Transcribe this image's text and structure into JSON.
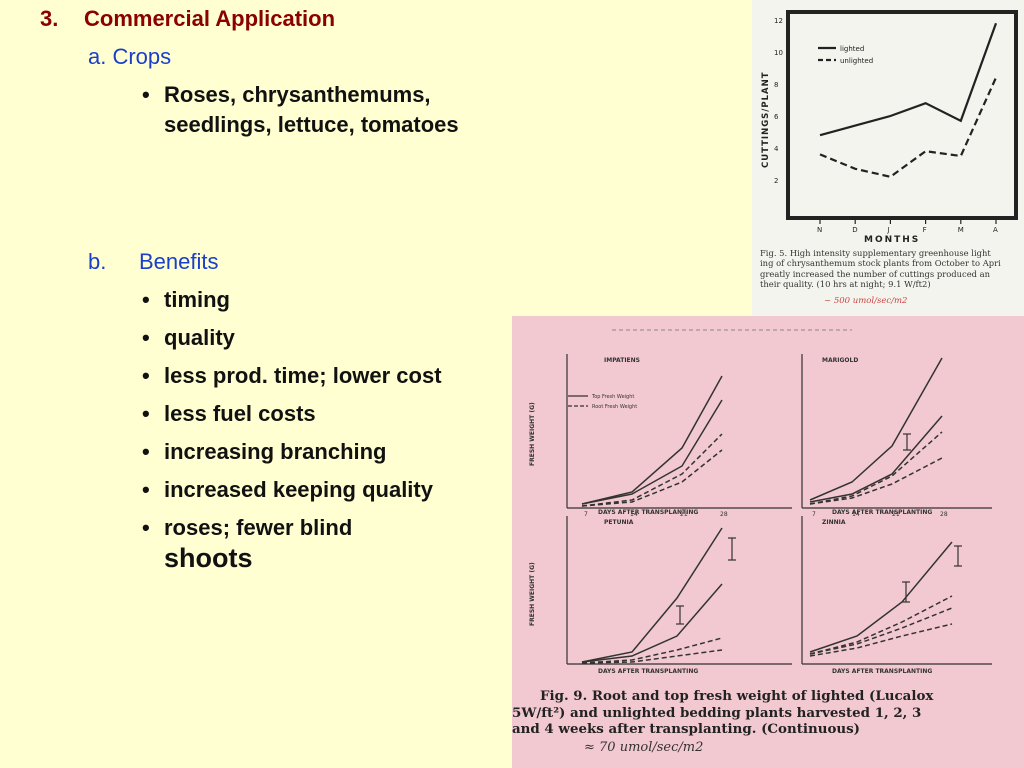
{
  "heading": {
    "number": "3.",
    "title": "Commercial Application"
  },
  "crops": {
    "label": "a.  Crops",
    "items": [
      "Roses, chrysanthemums, seedlings, lettuce, tomatoes"
    ]
  },
  "benefits": {
    "label_letter": "b.",
    "label": "Benefits",
    "items": [
      "timing",
      "quality",
      "less prod. time; lower cost",
      "less fuel costs",
      "increasing branching",
      "increased keeping quality"
    ],
    "last_item_start": "roses; fewer blind",
    "last_item_end": "shoots"
  },
  "fig5": {
    "legend": [
      "lighted",
      "unlighted"
    ],
    "ylabel": "CUTTINGS/PLANT",
    "xlabel": "MONTHS",
    "yticks": [
      "12",
      "10",
      "8",
      "6",
      "4",
      "2"
    ],
    "xticks": [
      "N",
      "D",
      "J",
      "F",
      "M",
      "A"
    ],
    "caption_lines": [
      "Fig. 5.  High intensity supplementary greenhouse light",
      "ing of chrysanthemum stock plants from October to Apri",
      "greatly increased the number of cuttings produced an",
      "their quality. (10 hrs at night; 9.1 W/ft2)"
    ],
    "handwritten_note": "~ 500 umol/sec/m2",
    "chart_data": {
      "type": "line",
      "categories": [
        "N",
        "D",
        "J",
        "F",
        "M",
        "A"
      ],
      "series": [
        {
          "name": "lighted",
          "values": [
            4.8,
            5.4,
            6.0,
            6.8,
            5.7,
            11.8
          ]
        },
        {
          "name": "unlighted",
          "values": [
            3.6,
            2.7,
            2.2,
            3.8,
            3.5,
            8.4
          ]
        }
      ],
      "xlabel": "MONTHS",
      "ylabel": "CUTTINGS/PLANT",
      "ylim": [
        0,
        12
      ]
    }
  },
  "fig9": {
    "panels": [
      {
        "title": "IMPATIENS"
      },
      {
        "title": "MARIGOLD"
      },
      {
        "title": "PETUNIA"
      },
      {
        "title": "ZINNIA"
      }
    ],
    "ylabel": "FRESH WEIGHT (G)",
    "xlabel": "DAYS AFTER TRANSPLANTING",
    "xticks": [
      "7",
      "14",
      "21",
      "28"
    ],
    "legend": [
      "Top Fresh Weight",
      "Root Fresh Weight"
    ],
    "caption_lines": [
      "Fig. 9.  Root and top fresh weight of lighted (Lucalox",
      "5W/ft²) and unlighted bedding plants harvested 1, 2, 3",
      "and 4 weeks after transplanting. (Continuous)"
    ],
    "handwritten_note": "≈ 70 umol/sec/m2"
  }
}
